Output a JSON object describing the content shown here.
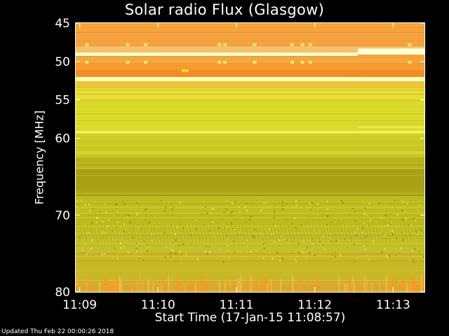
{
  "chart_data": {
    "type": "heatmap",
    "title": "Solar radio Flux (Glasgow)",
    "ylabel": "Frequency [MHz]",
    "xlabel": "Start Time (17-Jan-15 11:08:57)",
    "ylim": [
      80,
      45
    ],
    "y_ticks": [
      45,
      50,
      55,
      60,
      70,
      80
    ],
    "x_tick_labels": [
      "11:09",
      "11:10",
      "11:11",
      "11:12",
      "11:13"
    ],
    "x_tick_minutes": [
      0.05,
      1.05,
      2.05,
      3.05,
      4.05
    ],
    "x_range_minutes": [
      0,
      4.45
    ],
    "colors": {
      "orange": "#f59a28",
      "light_orange": "#f7b860",
      "white_band": "#ffffc8",
      "bright_yellow": "#eeee30",
      "yellow": "#dada28",
      "mid_yellow": "#c8c822",
      "olive": "#b0a818",
      "dark_olive": "#989410"
    },
    "bands": [
      {
        "from": 45,
        "to": 46.2,
        "color": "#f6a33a"
      },
      {
        "from": 46.2,
        "to": 48,
        "color": "#f6a140"
      },
      {
        "from": 48,
        "to": 48.8,
        "color": "#f8c068"
      },
      {
        "from": 48.8,
        "to": 49.3,
        "color": "#ffffc8"
      },
      {
        "from": 49.3,
        "to": 50.2,
        "color": "#f4a640"
      },
      {
        "from": 50.2,
        "to": 51.2,
        "color": "#f79a30"
      },
      {
        "from": 51.2,
        "to": 52.0,
        "color": "#f88a24"
      },
      {
        "from": 52.0,
        "to": 52.6,
        "color": "#ffffb0"
      },
      {
        "from": 52.6,
        "to": 53.4,
        "color": "#eec43a"
      },
      {
        "from": 53.4,
        "to": 55,
        "color": "#e8e036"
      },
      {
        "from": 55,
        "to": 59,
        "color": "#dcdc2c"
      },
      {
        "from": 59,
        "to": 59.4,
        "color": "#f4f460"
      },
      {
        "from": 59.4,
        "to": 62.5,
        "color": "#cccc26"
      },
      {
        "from": 62.5,
        "to": 64,
        "color": "#b8b01e"
      },
      {
        "from": 64,
        "to": 67.5,
        "color": "#a8a016"
      },
      {
        "from": 67.5,
        "to": 72,
        "color": "#bcbc22"
      },
      {
        "from": 72,
        "to": 75,
        "color": "#c4c02a"
      },
      {
        "from": 75,
        "to": 78.5,
        "color": "#c8b828"
      },
      {
        "from": 78.5,
        "to": 80,
        "color": "#d4a830"
      }
    ]
  },
  "footer": {
    "updated": "Updated Thu Feb 22 00:00:26 2018"
  }
}
